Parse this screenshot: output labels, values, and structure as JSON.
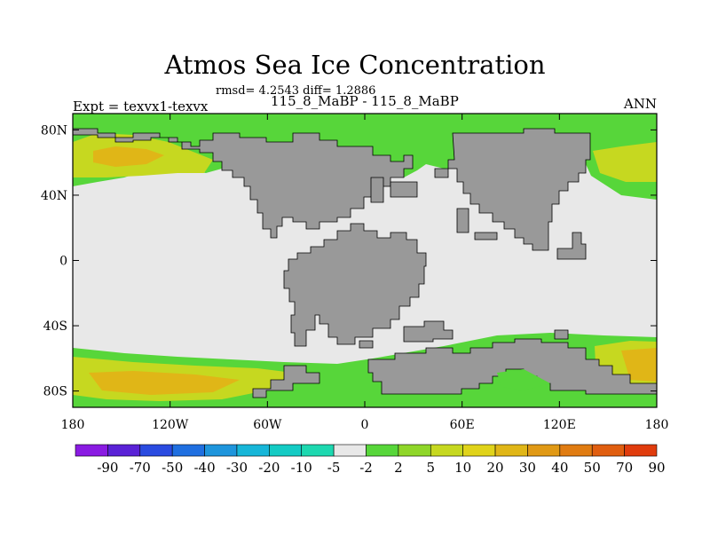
{
  "title": "Atmos Sea Ice Concentration",
  "stats": "rmsd= 4.2543 diff= 1.2886",
  "expt_label": "Expt = texvx1-texvx",
  "case_label": "115_8_MaBP - 115_8_MaBP",
  "season": "ANN",
  "lat_ticks": [
    {
      "label": "80N",
      "lat": 80
    },
    {
      "label": "40N",
      "lat": 40
    },
    {
      "label": "0",
      "lat": 0
    },
    {
      "label": "40S",
      "lat": -40
    },
    {
      "label": "80S",
      "lat": -80
    }
  ],
  "lon_ticks": [
    {
      "label": "180",
      "lon": -180
    },
    {
      "label": "120W",
      "lon": -120
    },
    {
      "label": "60W",
      "lon": -60
    },
    {
      "label": "0",
      "lon": 0
    },
    {
      "label": "60E",
      "lon": 60
    },
    {
      "label": "120E",
      "lon": 120
    },
    {
      "label": "180",
      "lon": 180
    }
  ],
  "colorbar": {
    "colors": [
      "#8a1be2",
      "#5a22d6",
      "#2a4be0",
      "#1f6fe0",
      "#1e95dc",
      "#17b6d8",
      "#14cbc4",
      "#1dd8b0",
      "#e8e8e8",
      "#57d63a",
      "#8fd629",
      "#c6d820",
      "#e0d31a",
      "#e0b617",
      "#e09915",
      "#e07c12",
      "#e05e10",
      "#e03c0d"
    ],
    "labels": [
      "-90",
      "-70",
      "-50",
      "-40",
      "-30",
      "-20",
      "-10",
      "-5",
      "-2",
      "2",
      "5",
      "10",
      "20",
      "30",
      "40",
      "50",
      "70",
      "90"
    ]
  },
  "map_colors": {
    "land": "#999999",
    "ocean": "#e8e8e8",
    "ice_low": "#57d63a",
    "ice_mid": "#c6d820",
    "ice_high": "#e0b617",
    "ice_peak": "#e07c12"
  }
}
